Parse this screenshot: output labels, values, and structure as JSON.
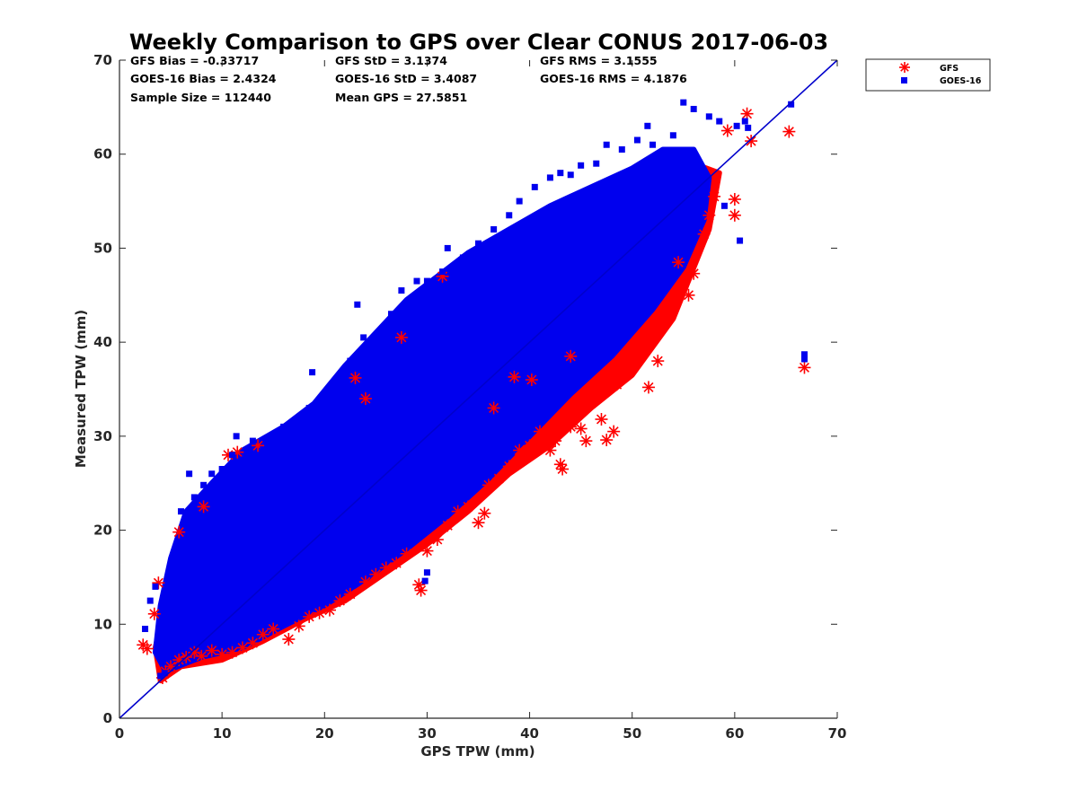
{
  "chart_data": {
    "type": "scatter",
    "title": "Weekly Comparison to GPS over Clear CONUS 2017-06-03",
    "xlabel": "GPS TPW (mm)",
    "ylabel": "Measured TPW (mm)",
    "xlim": [
      0,
      70
    ],
    "ylim": [
      0,
      70
    ],
    "xticks": [
      "0",
      "10",
      "20",
      "30",
      "40",
      "50",
      "60",
      "70"
    ],
    "yticks": [
      "0",
      "10",
      "20",
      "30",
      "40",
      "50",
      "60",
      "70"
    ],
    "grid": false,
    "legend_position": "top-right, outside plot",
    "stats": {
      "gfs_bias": "GFS Bias = -0.33717",
      "gfs_std": "GFS StD = 3.1374",
      "gfs_rms": "GFS RMS = 3.1555",
      "goes_bias": "GOES-16 Bias = 2.4324",
      "goes_std": "GOES-16 StD = 3.4087",
      "goes_rms": "GOES-16 RMS = 4.1876",
      "sample_size": "Sample Size = 112440",
      "mean_gps": "Mean GPS = 27.5851"
    },
    "reference_line": {
      "x": [
        0,
        70
      ],
      "y": [
        0,
        70
      ],
      "color": "#0000cc"
    },
    "series": [
      {
        "name": "GFS",
        "marker": "asterisk",
        "color": "#ff0000",
        "points": [
          [
            2.3,
            7.8
          ],
          [
            2.7,
            7.4
          ],
          [
            3.4,
            11.1
          ],
          [
            3.8,
            14.4
          ],
          [
            4.2,
            4.3
          ],
          [
            4.5,
            5.0
          ],
          [
            5.0,
            5.5
          ],
          [
            5.8,
            6.2
          ],
          [
            6.5,
            6.5
          ],
          [
            7.3,
            7.0
          ],
          [
            8.0,
            6.6
          ],
          [
            9.0,
            7.2
          ],
          [
            10.0,
            6.8
          ],
          [
            11.0,
            7.0
          ],
          [
            12.0,
            7.5
          ],
          [
            13.0,
            8.0
          ],
          [
            14.0,
            8.9
          ],
          [
            15.0,
            9.5
          ],
          [
            16.5,
            8.4
          ],
          [
            17.5,
            9.8
          ],
          [
            18.5,
            10.8
          ],
          [
            19.5,
            11.2
          ],
          [
            20.5,
            11.5
          ],
          [
            21.5,
            12.5
          ],
          [
            22.5,
            13.2
          ],
          [
            24.0,
            14.5
          ],
          [
            25.0,
            15.3
          ],
          [
            26.0,
            16.0
          ],
          [
            27.0,
            16.5
          ],
          [
            28.0,
            17.5
          ],
          [
            29.2,
            14.2
          ],
          [
            29.4,
            13.6
          ],
          [
            30.0,
            17.8
          ],
          [
            31.0,
            19.0
          ],
          [
            32.0,
            20.5
          ],
          [
            33.0,
            22.0
          ],
          [
            34.0,
            22.5
          ],
          [
            35.0,
            20.8
          ],
          [
            35.6,
            21.8
          ],
          [
            36.0,
            24.8
          ],
          [
            37.0,
            25.5
          ],
          [
            38.0,
            26.8
          ],
          [
            39.0,
            28.5
          ],
          [
            40.0,
            29.0
          ],
          [
            41.0,
            30.5
          ],
          [
            42.0,
            28.5
          ],
          [
            42.5,
            29.5
          ],
          [
            43.0,
            27.0
          ],
          [
            43.2,
            26.5
          ],
          [
            44.0,
            31.0
          ],
          [
            45.0,
            30.8
          ],
          [
            45.5,
            29.5
          ],
          [
            46.0,
            33.5
          ],
          [
            47.0,
            31.8
          ],
          [
            47.5,
            29.6
          ],
          [
            48.2,
            30.5
          ],
          [
            48.5,
            35.5
          ],
          [
            49.0,
            36.5
          ],
          [
            50.0,
            37.5
          ],
          [
            51.0,
            39.0
          ],
          [
            51.6,
            35.2
          ],
          [
            52.5,
            38.0
          ],
          [
            53.0,
            42.5
          ],
          [
            54.0,
            44.5
          ],
          [
            54.5,
            48.5
          ],
          [
            55.5,
            45.0
          ],
          [
            56.0,
            47.3
          ],
          [
            57.0,
            51.5
          ],
          [
            57.5,
            53.5
          ],
          [
            58.0,
            55.5
          ],
          [
            59.3,
            62.5
          ],
          [
            60.0,
            53.5
          ],
          [
            60.0,
            55.2
          ],
          [
            61.2,
            64.3
          ],
          [
            61.6,
            61.4
          ],
          [
            65.3,
            62.4
          ],
          [
            66.8,
            37.3
          ],
          [
            38.5,
            36.3
          ],
          [
            40.2,
            36.0
          ],
          [
            44.0,
            38.5
          ],
          [
            10.6,
            28.0
          ],
          [
            11.5,
            28.3
          ],
          [
            13.5,
            29.0
          ],
          [
            5.8,
            19.8
          ],
          [
            8.2,
            22.5
          ],
          [
            23.0,
            36.2
          ],
          [
            24.0,
            34.0
          ],
          [
            27.5,
            40.5
          ],
          [
            31.5,
            47.0
          ],
          [
            36.5,
            33.0
          ]
        ]
      },
      {
        "name": "GOES-16",
        "marker": "square",
        "color": "#0000ee",
        "points": [
          [
            2.5,
            9.5
          ],
          [
            3.0,
            12.5
          ],
          [
            3.5,
            14.0
          ],
          [
            4.0,
            4.5
          ],
          [
            4.4,
            4.8
          ],
          [
            5.0,
            16.0
          ],
          [
            5.5,
            18.0
          ],
          [
            6.0,
            22.0
          ],
          [
            6.8,
            26.0
          ],
          [
            7.3,
            23.5
          ],
          [
            8.2,
            24.8
          ],
          [
            9.0,
            26.0
          ],
          [
            10.0,
            26.5
          ],
          [
            11.0,
            28.0
          ],
          [
            11.4,
            30.0
          ],
          [
            12.0,
            27.5
          ],
          [
            13.0,
            29.5
          ],
          [
            14.0,
            28.5
          ],
          [
            15.0,
            29.8
          ],
          [
            16.0,
            31.0
          ],
          [
            17.0,
            30.0
          ],
          [
            18.5,
            33.0
          ],
          [
            18.8,
            36.8
          ],
          [
            20.0,
            34.0
          ],
          [
            21.0,
            35.5
          ],
          [
            22.5,
            38.0
          ],
          [
            23.2,
            44.0
          ],
          [
            23.8,
            40.5
          ],
          [
            24.5,
            38.5
          ],
          [
            25.5,
            41.0
          ],
          [
            26.5,
            43.0
          ],
          [
            27.5,
            45.5
          ],
          [
            28.5,
            44.0
          ],
          [
            29.0,
            46.5
          ],
          [
            30.0,
            46.5
          ],
          [
            31.5,
            47.5
          ],
          [
            32.0,
            50.0
          ],
          [
            33.5,
            49.0
          ],
          [
            35.0,
            50.5
          ],
          [
            36.5,
            52.0
          ],
          [
            38.0,
            53.5
          ],
          [
            39.0,
            55.0
          ],
          [
            40.5,
            56.5
          ],
          [
            42.0,
            57.5
          ],
          [
            43.0,
            58.0
          ],
          [
            44.0,
            57.8
          ],
          [
            45.0,
            58.8
          ],
          [
            46.5,
            59.0
          ],
          [
            47.5,
            61.0
          ],
          [
            49.0,
            60.5
          ],
          [
            50.5,
            61.5
          ],
          [
            51.5,
            63.0
          ],
          [
            52.0,
            61.0
          ],
          [
            54.0,
            62.0
          ],
          [
            55.0,
            65.5
          ],
          [
            56.0,
            64.8
          ],
          [
            57.5,
            64.0
          ],
          [
            58.5,
            63.5
          ],
          [
            60.2,
            63.0
          ],
          [
            61.0,
            63.5
          ],
          [
            61.3,
            62.8
          ],
          [
            65.5,
            65.3
          ],
          [
            66.8,
            38.7
          ],
          [
            66.8,
            38.2
          ],
          [
            25.0,
            25.5
          ],
          [
            30.0,
            15.5
          ],
          [
            29.8,
            14.6
          ],
          [
            35.0,
            26.0
          ],
          [
            40.0,
            35.0
          ],
          [
            45.0,
            40.0
          ],
          [
            50.0,
            46.0
          ],
          [
            55.0,
            50.0
          ],
          [
            15.0,
            15.0
          ],
          [
            20.0,
            22.0
          ],
          [
            10.0,
            12.0
          ],
          [
            5.0,
            8.0
          ],
          [
            57.0,
            57.5
          ],
          [
            59.0,
            54.5
          ],
          [
            60.5,
            50.8
          ],
          [
            33.0,
            27.0
          ]
        ]
      }
    ],
    "clouds": [
      {
        "series": "GFS",
        "color": "#ff0000",
        "polygon": [
          [
            3.5,
            7.5
          ],
          [
            4.0,
            4.0
          ],
          [
            6.0,
            5.5
          ],
          [
            10.0,
            6.2
          ],
          [
            14.0,
            8.2
          ],
          [
            18.0,
            10.5
          ],
          [
            22.0,
            12.5
          ],
          [
            26.0,
            15.5
          ],
          [
            30.0,
            18.5
          ],
          [
            34.0,
            22.0
          ],
          [
            38.0,
            26.0
          ],
          [
            42.0,
            29.0
          ],
          [
            46.0,
            33.0
          ],
          [
            50.0,
            36.5
          ],
          [
            54.0,
            42.5
          ],
          [
            57.5,
            52.0
          ],
          [
            58.5,
            58.0
          ],
          [
            56.0,
            59.0
          ],
          [
            50.0,
            55.0
          ],
          [
            45.0,
            51.0
          ],
          [
            40.0,
            47.0
          ],
          [
            35.0,
            43.0
          ],
          [
            30.0,
            39.0
          ],
          [
            25.0,
            34.0
          ],
          [
            20.0,
            29.0
          ],
          [
            15.0,
            24.0
          ],
          [
            10.0,
            19.0
          ],
          [
            6.0,
            14.0
          ],
          [
            4.0,
            10.0
          ]
        ]
      },
      {
        "series": "GOES-16",
        "color": "#0000ee",
        "polygon": [
          [
            3.5,
            7.0
          ],
          [
            4.5,
            5.0
          ],
          [
            8.0,
            6.5
          ],
          [
            12.0,
            7.5
          ],
          [
            16.0,
            9.8
          ],
          [
            20.0,
            12.0
          ],
          [
            24.0,
            14.8
          ],
          [
            28.0,
            18.0
          ],
          [
            32.0,
            21.5
          ],
          [
            36.0,
            25.5
          ],
          [
            40.0,
            30.0
          ],
          [
            44.0,
            34.5
          ],
          [
            48.0,
            38.5
          ],
          [
            52.0,
            43.5
          ],
          [
            55.0,
            48.0
          ],
          [
            57.0,
            53.0
          ],
          [
            57.5,
            57.5
          ],
          [
            56.0,
            60.5
          ],
          [
            53.0,
            60.5
          ],
          [
            50.0,
            58.5
          ],
          [
            46.0,
            56.5
          ],
          [
            42.0,
            54.5
          ],
          [
            38.0,
            52.0
          ],
          [
            34.0,
            49.5
          ],
          [
            31.0,
            47.0
          ],
          [
            28.0,
            44.5
          ],
          [
            25.0,
            41.0
          ],
          [
            22.0,
            37.5
          ],
          [
            19.0,
            33.5
          ],
          [
            16.0,
            31.0
          ],
          [
            12.0,
            28.5
          ],
          [
            9.0,
            25.0
          ],
          [
            6.5,
            22.0
          ],
          [
            5.0,
            17.0
          ],
          [
            4.0,
            12.0
          ]
        ]
      }
    ]
  }
}
